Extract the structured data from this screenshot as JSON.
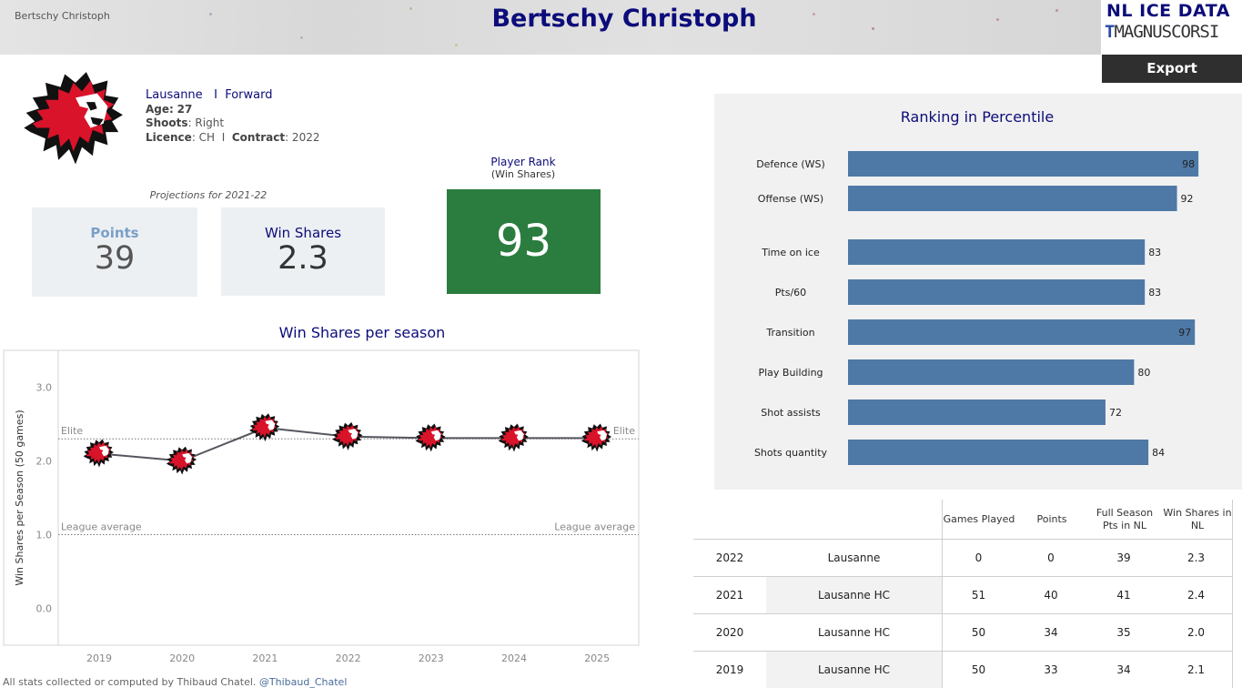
{
  "header": {
    "small_title": "Bertschy Christoph",
    "title": "Bertschy Christoph",
    "logo_line1": "NL ICE DATA",
    "logo_line2_mark": "T",
    "logo_line2_text": "MAGNUSCORSI",
    "export_label": "Export"
  },
  "player": {
    "team": "Lausanne",
    "separator": "I",
    "position": "Forward",
    "age_label": "Age:",
    "age": "27",
    "shoots_label": "Shoots",
    "shoots": ": Right",
    "licence_label": "Licence",
    "licence": ": CH",
    "contract_label": "Contract",
    "contract": ": 2022"
  },
  "projections": {
    "label": "Projections for 2021-22",
    "points_label": "Points",
    "points_value": "39",
    "ws_label": "Win Shares",
    "ws_value": "2.3"
  },
  "rank": {
    "title": "Player Rank",
    "subtitle": "(Win Shares)",
    "value": "93",
    "color": "#2a7d3f"
  },
  "percentile": {
    "title": "Ranking in Percentile",
    "bar_color": "#4e79a7"
  },
  "ws_chart_title": "Win Shares per season",
  "chart_data": [
    {
      "type": "bar",
      "orientation": "horizontal",
      "title": "Ranking in Percentile",
      "categories": [
        "Defence (WS)",
        "Offense (WS)",
        "Time on ice",
        "Pts/60",
        "Transition",
        "Play Building",
        "Shot assists",
        "Shots quantity"
      ],
      "values": [
        98,
        92,
        83,
        83,
        97,
        80,
        72,
        84
      ],
      "xlim": [
        0,
        100
      ]
    },
    {
      "type": "line",
      "title": "Win Shares per season",
      "ylabel": "Win Shares per Season (50 games)",
      "x": [
        "2019",
        "2020",
        "2021",
        "2022",
        "2023",
        "2024",
        "2025"
      ],
      "y": [
        2.1,
        2.0,
        2.45,
        2.33,
        2.31,
        2.31,
        2.31
      ],
      "yticks": [
        "0.0",
        "1.0",
        "2.0",
        "3.0"
      ],
      "ylim": [
        -0.5,
        3.5
      ],
      "reference_lines": [
        {
          "label": "Elite",
          "value": 2.3
        },
        {
          "label": "League average",
          "value": 1.0
        }
      ],
      "marker": "lion-logo"
    }
  ],
  "table": {
    "headers": [
      "Games Played",
      "Points",
      "Full Season Pts in NL",
      "Win Shares in NL"
    ],
    "rows": [
      {
        "season": "2022",
        "team": "Lausanne",
        "gp": "0",
        "pts": "0",
        "full": "39",
        "ws": "2.3"
      },
      {
        "season": "2021",
        "team": "Lausanne HC",
        "gp": "51",
        "pts": "40",
        "full": "41",
        "ws": "2.4"
      },
      {
        "season": "2020",
        "team": "Lausanne HC",
        "gp": "50",
        "pts": "34",
        "full": "35",
        "ws": "2.0"
      },
      {
        "season": "2019",
        "team": "Lausanne HC",
        "gp": "50",
        "pts": "33",
        "full": "34",
        "ws": "2.1"
      }
    ]
  },
  "footer": {
    "text": "All stats collected or computed by Thibaud Chatel.",
    "handle": "@Thibaud_Chatel"
  },
  "icons": {
    "club_logo": "lion-icon",
    "export": "export-button"
  }
}
